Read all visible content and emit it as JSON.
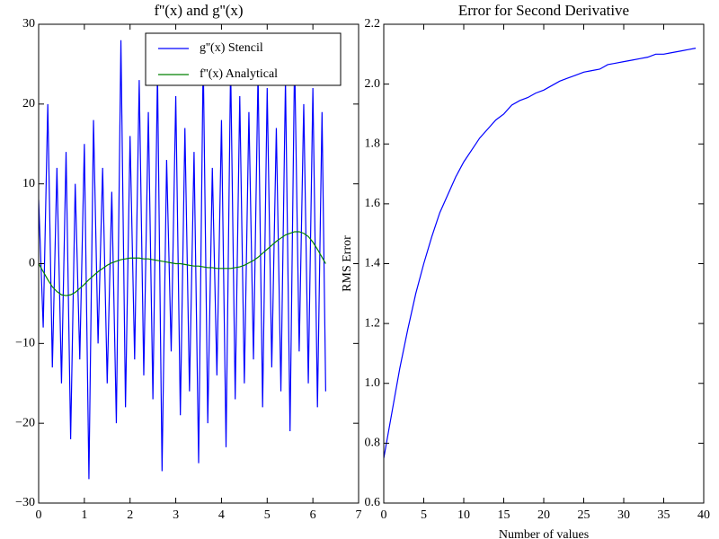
{
  "chart_data": [
    {
      "type": "line",
      "title": "f''(x) and g''(x)",
      "x": [
        0,
        0.1,
        0.2,
        0.3,
        0.4,
        0.5,
        0.6,
        0.7,
        0.8,
        0.9,
        1.0,
        1.1,
        1.2,
        1.3,
        1.4,
        1.5,
        1.6,
        1.7,
        1.8,
        1.9,
        2.0,
        2.1,
        2.2,
        2.3,
        2.4,
        2.5,
        2.6,
        2.7,
        2.8,
        2.9,
        3.0,
        3.1,
        3.2,
        3.3,
        3.4,
        3.5,
        3.6,
        3.7,
        3.8,
        3.9,
        4.0,
        4.1,
        4.2,
        4.3,
        4.4,
        4.5,
        4.6,
        4.7,
        4.8,
        4.9,
        5.0,
        5.1,
        5.2,
        5.3,
        5.4,
        5.5,
        5.6,
        5.7,
        5.8,
        5.9,
        6.0,
        6.1,
        6.2,
        6.28
      ],
      "series": [
        {
          "name": "g''(x) Stencil",
          "color": "#0000ff",
          "values": [
            8,
            -8,
            20,
            -13,
            12,
            -15,
            14,
            -22,
            10,
            -12,
            15,
            -27,
            18,
            -10,
            12,
            -15,
            9,
            -20,
            28,
            -18,
            16,
            -12,
            23,
            -14,
            19,
            -17,
            24,
            -26,
            13,
            -11,
            21,
            -19,
            17,
            -16,
            14,
            -25,
            26,
            -20,
            12,
            -14,
            18,
            -23,
            25,
            -17,
            21,
            -15,
            19,
            -12,
            24,
            -18,
            22,
            -13,
            17,
            -16,
            23,
            -21,
            26,
            -11,
            20,
            -15,
            22,
            -18,
            19,
            -16
          ]
        },
        {
          "name": "f''(x) Analytical",
          "color": "#008000",
          "values": [
            0,
            -1,
            -2,
            -2.9,
            -3.5,
            -3.9,
            -4,
            -3.9,
            -3.6,
            -3.1,
            -2.6,
            -2,
            -1.5,
            -1,
            -0.6,
            -0.2,
            0.1,
            0.3,
            0.5,
            0.6,
            0.7,
            0.7,
            0.7,
            0.6,
            0.6,
            0.5,
            0.4,
            0.3,
            0.2,
            0.1,
            0,
            0,
            -0.1,
            -0.2,
            -0.3,
            -0.3,
            -0.4,
            -0.5,
            -0.5,
            -0.6,
            -0.6,
            -0.6,
            -0.6,
            -0.5,
            -0.4,
            -0.2,
            0.1,
            0.4,
            0.8,
            1.3,
            1.8,
            2.3,
            2.8,
            3.2,
            3.6,
            3.8,
            4,
            4,
            3.8,
            3.4,
            2.7,
            1.8,
            0.8,
            0
          ]
        }
      ],
      "xlim": [
        0,
        7
      ],
      "xticks": [
        0,
        1,
        2,
        3,
        4,
        5,
        6,
        7
      ],
      "ylim": [
        -30,
        30
      ],
      "yticks": [
        {
          "value": -30,
          "label": "−30"
        },
        {
          "value": -20,
          "label": "−20"
        },
        {
          "value": -10,
          "label": "−10"
        },
        0,
        10,
        20,
        30
      ],
      "legend": "upper right",
      "grid": false
    },
    {
      "type": "line",
      "title": "Error for Second Derivative",
      "xlabel": "Number of values",
      "ylabel": "RMS Error",
      "x": [
        0,
        1,
        2,
        3,
        4,
        5,
        6,
        7,
        8,
        9,
        10,
        11,
        12,
        13,
        14,
        15,
        16,
        17,
        18,
        19,
        20,
        21,
        22,
        23,
        24,
        25,
        26,
        27,
        28,
        29,
        30,
        31,
        32,
        33,
        34,
        35,
        36,
        37,
        38,
        39
      ],
      "series": [
        {
          "color": "#0000ff",
          "values": [
            0.75,
            0.9,
            1.05,
            1.18,
            1.3,
            1.4,
            1.49,
            1.57,
            1.63,
            1.69,
            1.74,
            1.78,
            1.82,
            1.85,
            1.88,
            1.9,
            1.93,
            1.945,
            1.955,
            1.97,
            1.98,
            1.995,
            2.01,
            2.02,
            2.03,
            2.04,
            2.045,
            2.05,
            2.065,
            2.07,
            2.075,
            2.08,
            2.085,
            2.09,
            2.1,
            2.1,
            2.105,
            2.11,
            2.115,
            2.12
          ]
        }
      ],
      "xlim": [
        0,
        40
      ],
      "xticks": [
        0,
        5,
        10,
        15,
        20,
        25,
        30,
        35,
        40
      ],
      "ylim": [
        0.6,
        2.2
      ],
      "yticks": [
        0.6,
        0.8,
        {
          "value": 1.0,
          "label": "1.0"
        },
        1.2,
        1.4,
        1.6,
        1.8,
        {
          "value": 2.0,
          "label": "2.0"
        },
        2.2
      ],
      "grid": false
    }
  ]
}
